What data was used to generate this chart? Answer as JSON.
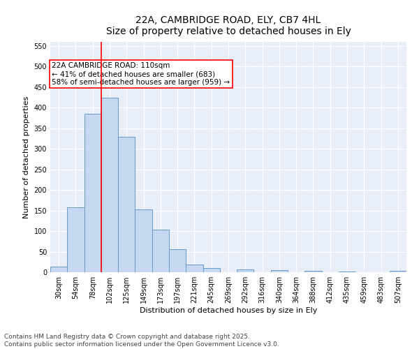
{
  "title_line1": "22A, CAMBRIDGE ROAD, ELY, CB7 4HL",
  "title_line2": "Size of property relative to detached houses in Ely",
  "xlabel": "Distribution of detached houses by size in Ely",
  "ylabel": "Number of detached properties",
  "bar_color": "#c5d8f0",
  "bar_edge_color": "#6699cc",
  "background_color": "#e8eef8",
  "grid_color": "#ffffff",
  "annotation_text": "22A CAMBRIDGE ROAD: 110sqm\n← 41% of detached houses are smaller (683)\n58% of semi-detached houses are larger (959) →",
  "vline_color": "red",
  "bins": [
    "30sqm",
    "54sqm",
    "78sqm",
    "102sqm",
    "125sqm",
    "149sqm",
    "173sqm",
    "197sqm",
    "221sqm",
    "245sqm",
    "269sqm",
    "292sqm",
    "316sqm",
    "340sqm",
    "364sqm",
    "388sqm",
    "412sqm",
    "435sqm",
    "459sqm",
    "483sqm",
    "507sqm"
  ],
  "values": [
    13,
    157,
    385,
    425,
    330,
    152,
    103,
    56,
    19,
    10,
    0,
    6,
    0,
    5,
    0,
    4,
    0,
    1,
    0,
    0,
    4
  ],
  "ylim": [
    0,
    560
  ],
  "yticks": [
    0,
    50,
    100,
    150,
    200,
    250,
    300,
    350,
    400,
    450,
    500,
    550
  ],
  "footer_text": "Contains HM Land Registry data © Crown copyright and database right 2025.\nContains public sector information licensed under the Open Government Licence v3.0.",
  "title_fontsize": 10,
  "xlabel_fontsize": 8,
  "ylabel_fontsize": 8,
  "tick_fontsize": 7,
  "annotation_fontsize": 7.5,
  "footer_fontsize": 6.5
}
